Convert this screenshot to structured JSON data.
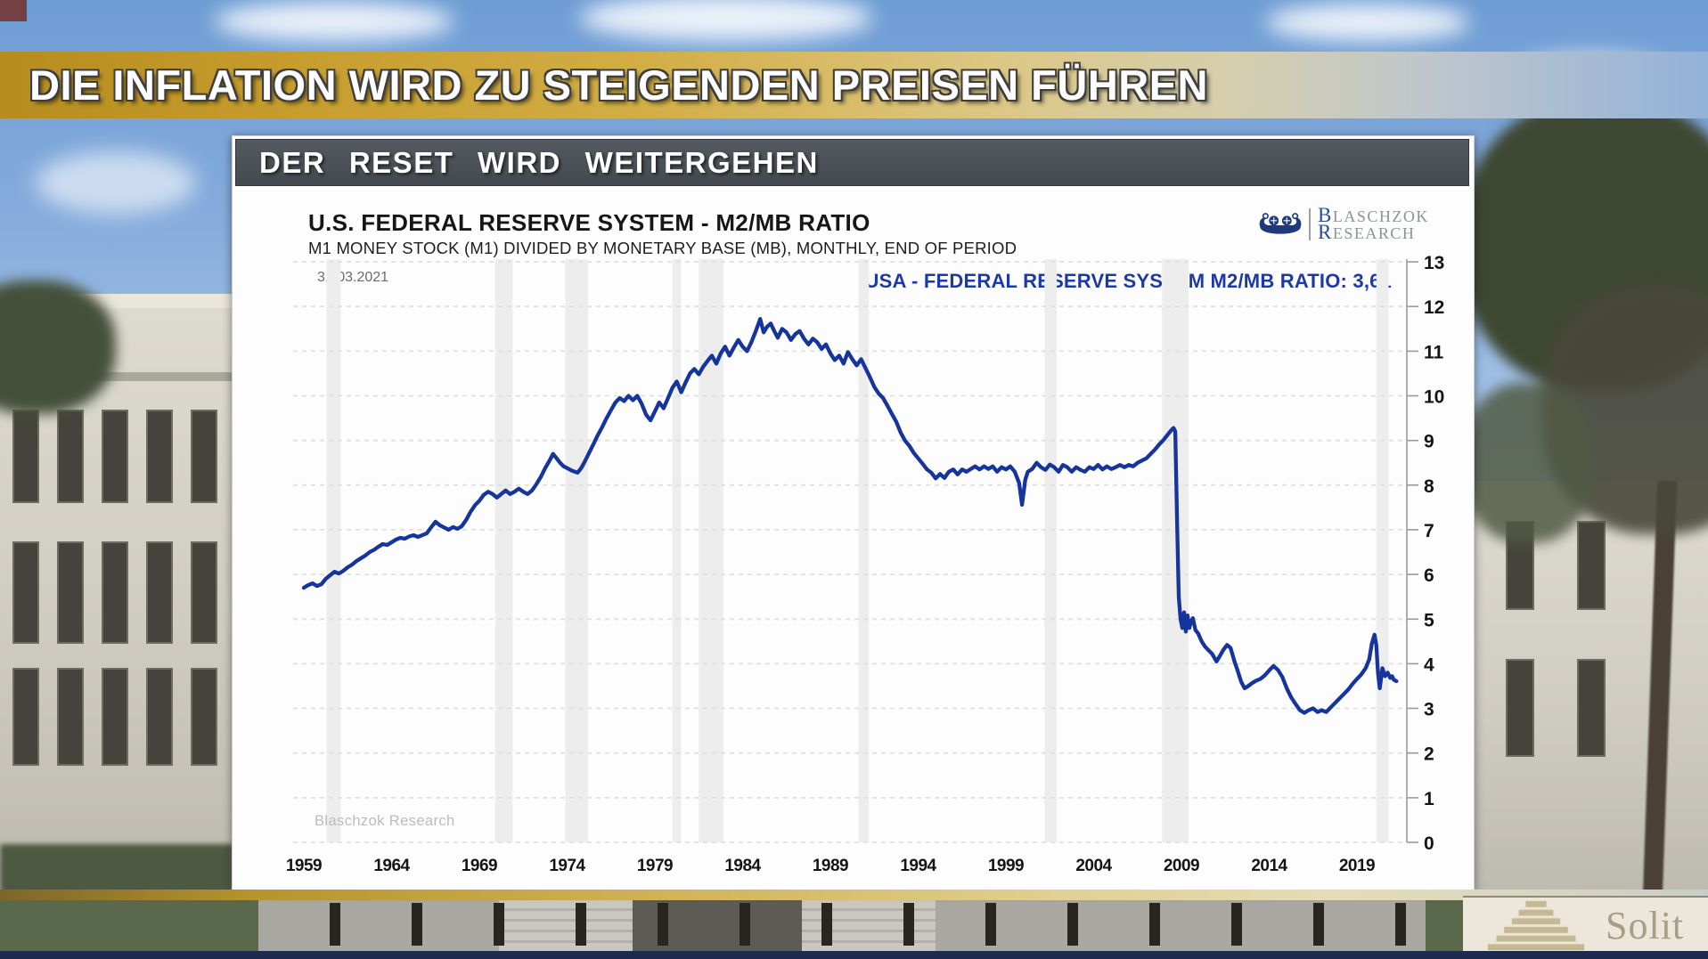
{
  "banner": {
    "title": "DIE INFLATION WIRD ZU STEIGENDEN PREISEN FÜHREN"
  },
  "panel": {
    "header": "DER RESET WIRD WEITERGEHEN",
    "title": "U.S. FEDERAL RESERVE SYSTEM - M2/MB RATIO",
    "subtitle": "M1 MONEY STOCK (M1) DIVIDED BY MONETARY BASE (MB), MONTHLY, END OF PERIOD",
    "date": "31.03.2021",
    "legend": "USA - FEDERAL RESERVE SYSTEM M2/MB RATIO: 3,61",
    "watermark": "Blaschzok Research",
    "logo": {
      "icon": "viking-ship-icon",
      "line1": "BLASCHZOK",
      "line2": "RESEARCH"
    }
  },
  "footer": {
    "brand": "Solit",
    "icon": "step-pyramid-icon"
  },
  "colors": {
    "accent_gold": "#c79e2e",
    "header_gray": "#4a5056",
    "line_blue": "#15359c",
    "legend_blue": "#1d3aa4",
    "navy_strip": "#1d2b4f"
  },
  "chart_data": {
    "type": "line",
    "title": "U.S. FEDERAL RESERVE SYSTEM - M2/MB RATIO",
    "subtitle": "M1 MONEY STOCK (M1) DIVIDED BY MONETARY BASE (MB), MONTHLY, END OF PERIOD",
    "legend": "USA - FEDERAL RESERVE SYSTEM M2/MB RATIO: 3,61",
    "last_date": "31.03.2021",
    "last_value": "3,61",
    "xlabel": "",
    "ylabel": "",
    "ylim": [
      0,
      13
    ],
    "yticks": [
      0,
      1,
      2,
      3,
      4,
      5,
      6,
      7,
      8,
      9,
      10,
      11,
      12,
      13
    ],
    "xticks": [
      1959,
      1964,
      1969,
      1974,
      1979,
      1984,
      1989,
      1994,
      1999,
      2004,
      2009,
      2014,
      2019
    ],
    "x_range": [
      1959,
      2021.25
    ],
    "grid": "horizontal-dashed",
    "legend_position": "top-right",
    "y_axis_side": "right",
    "line_color": "#15359c",
    "band_color": "#ededed",
    "recession_bands": [
      [
        1960.3,
        1961.1
      ],
      [
        1969.9,
        1970.9
      ],
      [
        1973.9,
        1975.2
      ],
      [
        1980.0,
        1980.5
      ],
      [
        1981.5,
        1982.9
      ],
      [
        1990.6,
        1991.2
      ],
      [
        2001.2,
        2001.9
      ],
      [
        2007.9,
        2009.4
      ],
      [
        2020.1,
        2020.8
      ]
    ],
    "points": [
      [
        1959,
        5.7
      ],
      [
        1959.25,
        5.76
      ],
      [
        1959.5,
        5.8
      ],
      [
        1959.75,
        5.74
      ],
      [
        1960,
        5.78
      ],
      [
        1960.25,
        5.9
      ],
      [
        1960.5,
        5.98
      ],
      [
        1960.75,
        6.06
      ],
      [
        1961,
        6.02
      ],
      [
        1961.25,
        6.08
      ],
      [
        1961.5,
        6.16
      ],
      [
        1961.75,
        6.22
      ],
      [
        1962,
        6.3
      ],
      [
        1962.25,
        6.36
      ],
      [
        1962.5,
        6.42
      ],
      [
        1962.75,
        6.5
      ],
      [
        1963,
        6.55
      ],
      [
        1963.25,
        6.62
      ],
      [
        1963.5,
        6.68
      ],
      [
        1963.75,
        6.66
      ],
      [
        1964,
        6.72
      ],
      [
        1964.25,
        6.78
      ],
      [
        1964.5,
        6.82
      ],
      [
        1964.75,
        6.8
      ],
      [
        1965,
        6.85
      ],
      [
        1965.25,
        6.88
      ],
      [
        1965.5,
        6.84
      ],
      [
        1965.75,
        6.88
      ],
      [
        1966,
        6.92
      ],
      [
        1966.25,
        7.05
      ],
      [
        1966.5,
        7.18
      ],
      [
        1966.75,
        7.1
      ],
      [
        1967,
        7.05
      ],
      [
        1967.25,
        7.0
      ],
      [
        1967.5,
        7.06
      ],
      [
        1967.75,
        7.02
      ],
      [
        1968,
        7.08
      ],
      [
        1968.25,
        7.22
      ],
      [
        1968.5,
        7.4
      ],
      [
        1968.75,
        7.55
      ],
      [
        1969,
        7.65
      ],
      [
        1969.25,
        7.78
      ],
      [
        1969.5,
        7.85
      ],
      [
        1969.75,
        7.8
      ],
      [
        1970,
        7.72
      ],
      [
        1970.25,
        7.8
      ],
      [
        1970.5,
        7.88
      ],
      [
        1970.75,
        7.8
      ],
      [
        1971,
        7.85
      ],
      [
        1971.25,
        7.92
      ],
      [
        1971.5,
        7.85
      ],
      [
        1971.75,
        7.8
      ],
      [
        1972,
        7.88
      ],
      [
        1972.25,
        8.02
      ],
      [
        1972.5,
        8.18
      ],
      [
        1972.75,
        8.38
      ],
      [
        1973,
        8.55
      ],
      [
        1973.2,
        8.7
      ],
      [
        1973.4,
        8.6
      ],
      [
        1973.6,
        8.5
      ],
      [
        1973.8,
        8.42
      ],
      [
        1974,
        8.38
      ],
      [
        1974.3,
        8.32
      ],
      [
        1974.6,
        8.28
      ],
      [
        1974.8,
        8.38
      ],
      [
        1975,
        8.52
      ],
      [
        1975.25,
        8.72
      ],
      [
        1975.5,
        8.92
      ],
      [
        1975.75,
        9.12
      ],
      [
        1976,
        9.3
      ],
      [
        1976.25,
        9.5
      ],
      [
        1976.5,
        9.68
      ],
      [
        1976.75,
        9.85
      ],
      [
        1977,
        9.95
      ],
      [
        1977.25,
        9.88
      ],
      [
        1977.5,
        10.0
      ],
      [
        1977.75,
        9.9
      ],
      [
        1978,
        10.0
      ],
      [
        1978.25,
        9.82
      ],
      [
        1978.5,
        9.58
      ],
      [
        1978.75,
        9.45
      ],
      [
        1979,
        9.65
      ],
      [
        1979.25,
        9.85
      ],
      [
        1979.5,
        9.72
      ],
      [
        1979.75,
        9.95
      ],
      [
        1980,
        10.18
      ],
      [
        1980.25,
        10.32
      ],
      [
        1980.5,
        10.08
      ],
      [
        1980.75,
        10.3
      ],
      [
        1981,
        10.5
      ],
      [
        1981.25,
        10.6
      ],
      [
        1981.5,
        10.48
      ],
      [
        1981.75,
        10.65
      ],
      [
        1982,
        10.78
      ],
      [
        1982.25,
        10.9
      ],
      [
        1982.5,
        10.72
      ],
      [
        1982.75,
        10.95
      ],
      [
        1983,
        11.1
      ],
      [
        1983.25,
        10.9
      ],
      [
        1983.5,
        11.08
      ],
      [
        1983.75,
        11.25
      ],
      [
        1984,
        11.1
      ],
      [
        1984.25,
        11.0
      ],
      [
        1984.5,
        11.2
      ],
      [
        1984.75,
        11.45
      ],
      [
        1985,
        11.72
      ],
      [
        1985.2,
        11.42
      ],
      [
        1985.4,
        11.55
      ],
      [
        1985.6,
        11.62
      ],
      [
        1985.8,
        11.45
      ],
      [
        1986,
        11.3
      ],
      [
        1986.25,
        11.5
      ],
      [
        1986.5,
        11.42
      ],
      [
        1986.75,
        11.25
      ],
      [
        1987,
        11.38
      ],
      [
        1987.25,
        11.45
      ],
      [
        1987.5,
        11.28
      ],
      [
        1987.75,
        11.15
      ],
      [
        1988,
        11.28
      ],
      [
        1988.25,
        11.2
      ],
      [
        1988.5,
        11.05
      ],
      [
        1988.75,
        11.15
      ],
      [
        1989,
        10.95
      ],
      [
        1989.25,
        10.8
      ],
      [
        1989.5,
        10.9
      ],
      [
        1989.75,
        10.72
      ],
      [
        1990,
        10.98
      ],
      [
        1990.25,
        10.82
      ],
      [
        1990.5,
        10.68
      ],
      [
        1990.75,
        10.82
      ],
      [
        1991,
        10.62
      ],
      [
        1991.25,
        10.42
      ],
      [
        1991.5,
        10.2
      ],
      [
        1991.75,
        10.05
      ],
      [
        1992,
        9.95
      ],
      [
        1992.25,
        9.78
      ],
      [
        1992.5,
        9.6
      ],
      [
        1992.75,
        9.42
      ],
      [
        1993,
        9.18
      ],
      [
        1993.25,
        9.0
      ],
      [
        1993.5,
        8.88
      ],
      [
        1993.75,
        8.72
      ],
      [
        1994,
        8.6
      ],
      [
        1994.25,
        8.48
      ],
      [
        1994.5,
        8.35
      ],
      [
        1994.75,
        8.28
      ],
      [
        1995,
        8.15
      ],
      [
        1995.25,
        8.25
      ],
      [
        1995.5,
        8.16
      ],
      [
        1995.75,
        8.3
      ],
      [
        1996,
        8.35
      ],
      [
        1996.25,
        8.24
      ],
      [
        1996.5,
        8.35
      ],
      [
        1996.75,
        8.3
      ],
      [
        1997,
        8.36
      ],
      [
        1997.25,
        8.42
      ],
      [
        1997.5,
        8.35
      ],
      [
        1997.75,
        8.42
      ],
      [
        1998,
        8.36
      ],
      [
        1998.25,
        8.42
      ],
      [
        1998.5,
        8.3
      ],
      [
        1998.75,
        8.4
      ],
      [
        1999,
        8.35
      ],
      [
        1999.25,
        8.42
      ],
      [
        1999.5,
        8.3
      ],
      [
        1999.75,
        8.05
      ],
      [
        1999.92,
        7.56
      ],
      [
        2000.1,
        8.12
      ],
      [
        2000.25,
        8.3
      ],
      [
        2000.5,
        8.36
      ],
      [
        2000.75,
        8.5
      ],
      [
        2001,
        8.4
      ],
      [
        2001.25,
        8.34
      ],
      [
        2001.5,
        8.46
      ],
      [
        2001.75,
        8.4
      ],
      [
        2002,
        8.3
      ],
      [
        2002.25,
        8.45
      ],
      [
        2002.5,
        8.4
      ],
      [
        2002.75,
        8.3
      ],
      [
        2003,
        8.4
      ],
      [
        2003.25,
        8.34
      ],
      [
        2003.5,
        8.3
      ],
      [
        2003.75,
        8.4
      ],
      [
        2004,
        8.36
      ],
      [
        2004.25,
        8.45
      ],
      [
        2004.5,
        8.35
      ],
      [
        2004.75,
        8.42
      ],
      [
        2005,
        8.36
      ],
      [
        2005.25,
        8.4
      ],
      [
        2005.5,
        8.45
      ],
      [
        2005.75,
        8.4
      ],
      [
        2006,
        8.45
      ],
      [
        2006.25,
        8.42
      ],
      [
        2006.5,
        8.5
      ],
      [
        2006.75,
        8.55
      ],
      [
        2007,
        8.6
      ],
      [
        2007.25,
        8.7
      ],
      [
        2007.5,
        8.8
      ],
      [
        2007.75,
        8.92
      ],
      [
        2008,
        9.02
      ],
      [
        2008.2,
        9.12
      ],
      [
        2008.4,
        9.22
      ],
      [
        2008.55,
        9.28
      ],
      [
        2008.65,
        9.2
      ],
      [
        2008.75,
        7.2
      ],
      [
        2008.85,
        5.5
      ],
      [
        2008.95,
        5.0
      ],
      [
        2009.05,
        4.8
      ],
      [
        2009.15,
        5.15
      ],
      [
        2009.25,
        4.72
      ],
      [
        2009.35,
        5.08
      ],
      [
        2009.45,
        4.8
      ],
      [
        2009.55,
        4.95
      ],
      [
        2009.65,
        5.02
      ],
      [
        2009.8,
        4.75
      ],
      [
        2009.95,
        4.68
      ],
      [
        2010.15,
        4.5
      ],
      [
        2010.35,
        4.38
      ],
      [
        2010.55,
        4.3
      ],
      [
        2010.75,
        4.22
      ],
      [
        2011,
        4.05
      ],
      [
        2011.2,
        4.18
      ],
      [
        2011.4,
        4.32
      ],
      [
        2011.6,
        4.42
      ],
      [
        2011.8,
        4.35
      ],
      [
        2012,
        4.08
      ],
      [
        2012.2,
        3.85
      ],
      [
        2012.4,
        3.6
      ],
      [
        2012.6,
        3.45
      ],
      [
        2012.8,
        3.5
      ],
      [
        2013,
        3.56
      ],
      [
        2013.25,
        3.62
      ],
      [
        2013.5,
        3.66
      ],
      [
        2013.75,
        3.74
      ],
      [
        2014,
        3.85
      ],
      [
        2014.25,
        3.95
      ],
      [
        2014.5,
        3.86
      ],
      [
        2014.75,
        3.7
      ],
      [
        2015,
        3.45
      ],
      [
        2015.25,
        3.25
      ],
      [
        2015.5,
        3.1
      ],
      [
        2015.75,
        2.96
      ],
      [
        2016,
        2.9
      ],
      [
        2016.25,
        2.96
      ],
      [
        2016.5,
        3.0
      ],
      [
        2016.75,
        2.92
      ],
      [
        2017,
        2.96
      ],
      [
        2017.25,
        2.92
      ],
      [
        2017.5,
        3.02
      ],
      [
        2017.75,
        3.12
      ],
      [
        2018,
        3.22
      ],
      [
        2018.25,
        3.32
      ],
      [
        2018.5,
        3.42
      ],
      [
        2018.75,
        3.55
      ],
      [
        2019,
        3.66
      ],
      [
        2019.25,
        3.76
      ],
      [
        2019.5,
        3.9
      ],
      [
        2019.7,
        4.1
      ],
      [
        2019.85,
        4.45
      ],
      [
        2020,
        4.65
      ],
      [
        2020.1,
        4.42
      ],
      [
        2020.2,
        3.8
      ],
      [
        2020.3,
        3.45
      ],
      [
        2020.45,
        3.9
      ],
      [
        2020.6,
        3.72
      ],
      [
        2020.75,
        3.8
      ],
      [
        2020.9,
        3.68
      ],
      [
        2021,
        3.72
      ],
      [
        2021.1,
        3.64
      ],
      [
        2021.25,
        3.61
      ]
    ]
  }
}
